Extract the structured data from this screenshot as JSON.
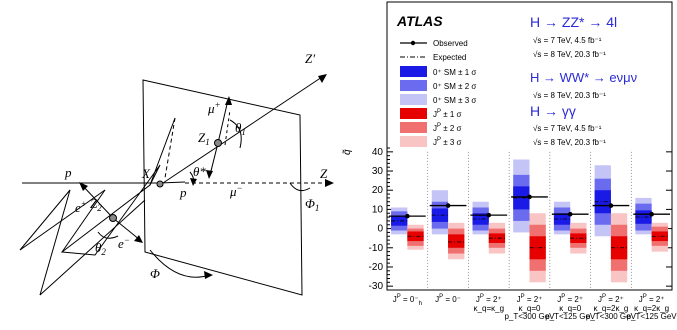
{
  "diagram": {
    "labels": {
      "p_left": "p",
      "p_right": "p",
      "x": "X",
      "z_axis": "Z",
      "z_prime": "Z′",
      "z1": "Z",
      "z1_sub": "1",
      "z2": "Z",
      "z2_sub": "2",
      "mu_plus": "μ",
      "mu_plus_sup": "+",
      "mu_minus": "μ",
      "mu_minus_sup": "−",
      "e_plus": "e",
      "e_plus_sup": "+",
      "e_minus": "e",
      "e_minus_sup": "−",
      "theta1": "θ",
      "theta1_sub": "1",
      "theta2": "θ",
      "theta2_sub": "2",
      "theta_star": "θ*",
      "phi": "Φ",
      "phi1": "Φ",
      "phi1_sub": "1"
    }
  },
  "chart_data": {
    "type": "box",
    "experiment_label": "ATLAS",
    "ylabel": "q̃",
    "ylim": [
      -32,
      42
    ],
    "yticks": [
      -30,
      -20,
      -10,
      0,
      10,
      20,
      30,
      40
    ],
    "grid": false,
    "legend": {
      "position": "top-left",
      "observed": "Observed",
      "expected": "Expected",
      "sm_1sigma": "0⁺ SM ± 1 σ",
      "sm_2sigma": "0⁺ SM ± 2 σ",
      "sm_3sigma": "0⁺ SM ± 3 σ",
      "alt_1sigma": "J",
      "alt_1sigma_sup": "P",
      "alt_1sigma_rest": " ± 1 σ",
      "alt_2sigma_rest": " ± 2 σ",
      "alt_3sigma_rest": " ± 3 σ"
    },
    "channels": {
      "zz_title": "H → ZZ* → 4l",
      "zz_lumi7": "√s = 7 TeV, 4.5 fb⁻¹",
      "zz_lumi8": "√s = 8 TeV, 20.3 fb⁻¹",
      "ww_title": "H → WW* → eνμν",
      "ww_lumi8": "√s = 8 TeV, 20.3 fb⁻¹",
      "gg_title": "H → γγ",
      "gg_lumi7": "√s = 7 TeV, 4.5 fb⁻¹",
      "gg_lumi8": "√s = 8 TeV, 20.3 fb⁻¹"
    },
    "categories": [
      {
        "main": "J",
        "sup": "P",
        "rest": " = 0⁻",
        "sub1": "h",
        "sub2": "",
        "sub3": ""
      },
      {
        "main": "J",
        "sup": "P",
        "rest": " = 0⁻",
        "sub1": "",
        "sub2": "",
        "sub3": ""
      },
      {
        "main": "J",
        "sup": "P",
        "rest": " = 2⁺",
        "sub1": "",
        "sub2": "κ_q=κ_g",
        "sub3": ""
      },
      {
        "main": "J",
        "sup": "P",
        "rest": " = 2⁺",
        "sub1": "",
        "sub2": "κ_q=0",
        "sub3": "p_T<300 GeV"
      },
      {
        "main": "J",
        "sup": "P",
        "rest": " = 2⁺",
        "sub1": "",
        "sub2": "κ_q=0",
        "sub3": "p_T<125 GeV"
      },
      {
        "main": "J",
        "sup": "P",
        "rest": " = 2⁺",
        "sub1": "",
        "sub2": "κ_q=2κ_g",
        "sub3": "p_T<300 GeV"
      },
      {
        "main": "J",
        "sup": "P",
        "rest": " = 2⁺",
        "sub1": "",
        "sub2": "κ_q=2κ_g",
        "sub3": "p_T<125 GeV"
      }
    ],
    "series": [
      {
        "name": "Observed",
        "values": [
          6.5,
          12.0,
          7.0,
          16.5,
          7.5,
          12.0,
          7.5
        ]
      },
      {
        "name": "0⁺ SM",
        "expected": [
          4,
          7,
          5,
          16,
          5,
          14,
          6
        ],
        "sigma1": [
          [
            1.5,
            6.5
          ],
          [
            3.5,
            10.5
          ],
          [
            2,
            8
          ],
          [
            10,
            22
          ],
          [
            2,
            8
          ],
          [
            8,
            20
          ],
          [
            2.5,
            9.5
          ]
        ],
        "sigma2": [
          [
            -1,
            9
          ],
          [
            0,
            14
          ],
          [
            -1,
            11
          ],
          [
            4,
            28
          ],
          [
            -1,
            11
          ],
          [
            2,
            26
          ],
          [
            -1,
            13
          ]
        ],
        "sigma3": [
          [
            -3,
            11
          ],
          [
            -3,
            20
          ],
          [
            -3,
            14
          ],
          [
            -2,
            36
          ],
          [
            -3,
            14
          ],
          [
            -4,
            33
          ],
          [
            -3,
            16
          ]
        ]
      },
      {
        "name": "J^P",
        "expected": [
          -4,
          -7,
          -5,
          -10,
          -5,
          -10,
          -4
        ],
        "sigma1": [
          [
            -6.5,
            -1.5
          ],
          [
            -10,
            -3
          ],
          [
            -7.5,
            -2.5
          ],
          [
            -16,
            -4
          ],
          [
            -7.5,
            -2.5
          ],
          [
            -16,
            -4
          ],
          [
            -6.5,
            -1.5
          ]
        ],
        "sigma2": [
          [
            -9,
            0
          ],
          [
            -13,
            0
          ],
          [
            -10,
            0
          ],
          [
            -22,
            2
          ],
          [
            -10,
            0
          ],
          [
            -22,
            2
          ],
          [
            -9,
            1
          ]
        ],
        "sigma3": [
          [
            -11,
            2
          ],
          [
            -16,
            3
          ],
          [
            -13,
            3
          ],
          [
            -28,
            8
          ],
          [
            -13,
            3
          ],
          [
            -28,
            8
          ],
          [
            -12,
            3
          ]
        ]
      }
    ],
    "colors": {
      "sm1": "#1a1ae6",
      "sm2": "#6b6bef",
      "sm3": "#c4c4f7",
      "alt1": "#e60000",
      "alt2": "#f07070",
      "alt3": "#f9c4c4",
      "observed": "#000000",
      "channel_title": "#2b2bd6"
    }
  }
}
